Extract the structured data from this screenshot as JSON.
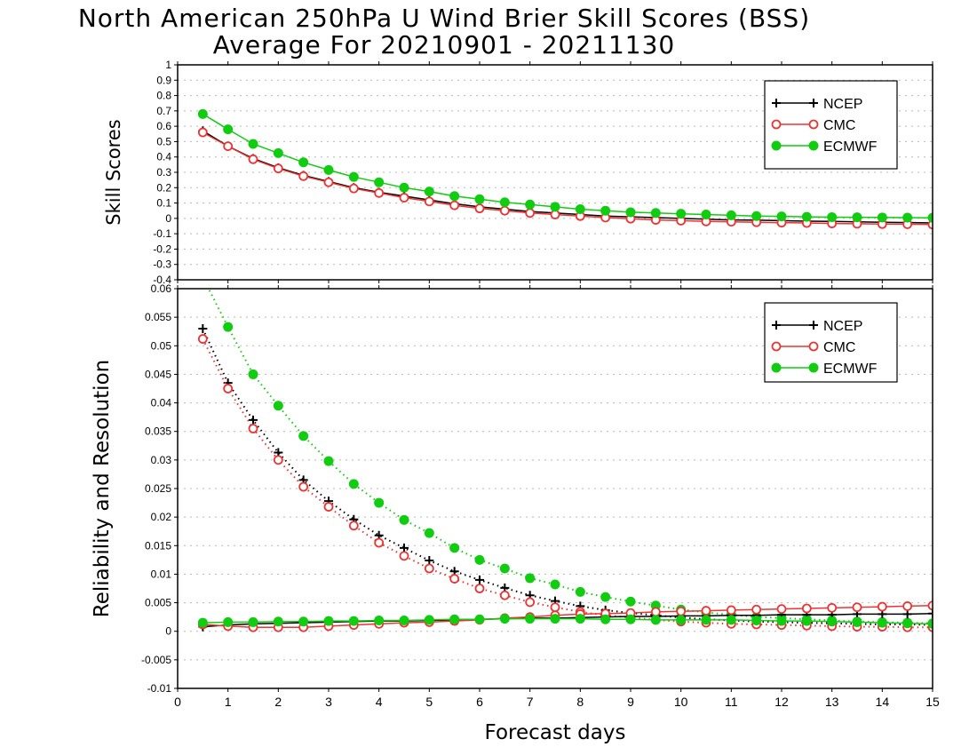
{
  "title": "North American 250hPa U Wind Brier Skill Scores (BSS)",
  "subtitle": "Average For 20210901 - 20211130",
  "xlabel": "Forecast days",
  "colors": {
    "NCEP": "#000000",
    "CMC": "#ee3333",
    "ECMWF": "#11cc11"
  },
  "chart_data": [
    {
      "type": "line",
      "ylabel": "Skill Scores",
      "xlim": [
        0,
        15
      ],
      "ylim": [
        -0.4,
        1
      ],
      "xticks": [
        "0",
        "1",
        "2",
        "3",
        "4",
        "5",
        "6",
        "7",
        "8",
        "9",
        "10",
        "11",
        "12",
        "13",
        "14",
        "15"
      ],
      "yticks": [
        "1",
        "0.9",
        "0.8",
        "0.7",
        "0.6",
        "0.5",
        "0.4",
        "0.3",
        "0.2",
        "0.1",
        "0",
        "-0.1",
        "-0.2",
        "-0.3",
        "-0.4"
      ],
      "grid": true,
      "legend_position": "top-right",
      "x": [
        0.5,
        1,
        1.5,
        2,
        2.5,
        3,
        3.5,
        4,
        4.5,
        5,
        5.5,
        6,
        6.5,
        7,
        7.5,
        8,
        8.5,
        9,
        9.5,
        10,
        10.5,
        11,
        11.5,
        12,
        12.5,
        13,
        13.5,
        14,
        14.5,
        15
      ],
      "series": [
        {
          "name": "NCEP",
          "marker": "plus",
          "style": "solid",
          "values": [
            0.57,
            0.47,
            0.39,
            0.33,
            0.28,
            0.24,
            0.2,
            0.17,
            0.145,
            0.12,
            0.095,
            0.075,
            0.06,
            0.045,
            0.035,
            0.025,
            0.015,
            0.01,
            0.005,
            0.0,
            -0.005,
            -0.01,
            -0.012,
            -0.015,
            -0.018,
            -0.02,
            -0.022,
            -0.025,
            -0.027,
            -0.03
          ]
        },
        {
          "name": "CMC",
          "marker": "open-circle",
          "style": "solid",
          "values": [
            0.56,
            0.47,
            0.385,
            0.325,
            0.275,
            0.235,
            0.195,
            0.165,
            0.135,
            0.11,
            0.085,
            0.065,
            0.05,
            0.035,
            0.025,
            0.015,
            0.005,
            -0.002,
            -0.01,
            -0.015,
            -0.02,
            -0.022,
            -0.025,
            -0.028,
            -0.03,
            -0.033,
            -0.035,
            -0.037,
            -0.038,
            -0.04
          ]
        },
        {
          "name": "ECMWF",
          "marker": "filled-circle",
          "style": "solid",
          "values": [
            0.68,
            0.58,
            0.485,
            0.425,
            0.365,
            0.315,
            0.27,
            0.235,
            0.2,
            0.175,
            0.145,
            0.125,
            0.105,
            0.09,
            0.075,
            0.06,
            0.05,
            0.04,
            0.035,
            0.03,
            0.025,
            0.02,
            0.015,
            0.013,
            0.01,
            0.008,
            0.007,
            0.006,
            0.005,
            0.004
          ]
        }
      ]
    },
    {
      "type": "line",
      "ylabel": "Reliability and Resolution",
      "xlim": [
        0,
        15
      ],
      "ylim": [
        -0.01,
        0.06
      ],
      "xticks": [
        "0",
        "1",
        "2",
        "3",
        "4",
        "5",
        "6",
        "7",
        "8",
        "9",
        "10",
        "11",
        "12",
        "13",
        "14",
        "15"
      ],
      "yticks": [
        "0.06",
        "0.055",
        "0.05",
        "0.045",
        "0.04",
        "0.035",
        "0.03",
        "0.025",
        "0.02",
        "0.015",
        "0.01",
        "0.005",
        "0",
        "-0.005",
        "-0.01"
      ],
      "grid": true,
      "legend_position": "top-right",
      "x": [
        0.5,
        1,
        1.5,
        2,
        2.5,
        3,
        3.5,
        4,
        4.5,
        5,
        5.5,
        6,
        6.5,
        7,
        7.5,
        8,
        8.5,
        9,
        9.5,
        10,
        10.5,
        11,
        11.5,
        12,
        12.5,
        13,
        13.5,
        14,
        14.5,
        15
      ],
      "series": [
        {
          "name": "NCEP",
          "marker": "plus",
          "style": "dotted",
          "values": [
            0.053,
            0.0435,
            0.037,
            0.0313,
            0.0265,
            0.0228,
            0.0196,
            0.0168,
            0.0146,
            0.0124,
            0.0105,
            0.009,
            0.0076,
            0.0063,
            0.0053,
            0.0044,
            0.0037,
            0.0032,
            0.0028,
            0.0024,
            0.0021,
            0.0019,
            0.0017,
            0.0016,
            0.0015,
            0.0014,
            0.0013,
            0.0012,
            0.0012,
            0.0011
          ]
        },
        {
          "name": "CMC",
          "marker": "open-circle",
          "style": "dotted",
          "values": [
            0.0512,
            0.0425,
            0.0355,
            0.03,
            0.0253,
            0.0218,
            0.0185,
            0.0155,
            0.0132,
            0.011,
            0.0092,
            0.0075,
            0.0063,
            0.0051,
            0.0042,
            0.0034,
            0.0028,
            0.0024,
            0.002,
            0.0017,
            0.0015,
            0.0013,
            0.0012,
            0.0011,
            0.001,
            0.0009,
            0.0008,
            0.0008,
            0.0007,
            0.0007
          ]
        },
        {
          "name": "ECMWF",
          "marker": "filled-circle",
          "style": "dotted",
          "values": [
            0.062,
            0.0533,
            0.045,
            0.0395,
            0.0342,
            0.0298,
            0.0258,
            0.0225,
            0.0195,
            0.0172,
            0.0146,
            0.0125,
            0.011,
            0.0093,
            0.0082,
            0.0069,
            0.006,
            0.0052,
            0.0045,
            0.0038,
            0.0033,
            0.0029,
            0.0025,
            0.0023,
            0.0021,
            0.0019,
            0.0017,
            0.0016,
            0.0015,
            0.0014
          ]
        },
        {
          "name": "NCEP",
          "marker": "plus",
          "style": "solid",
          "legend": false,
          "values": [
            0.0008,
            0.0011,
            0.0013,
            0.0014,
            0.0015,
            0.0016,
            0.0017,
            0.0018,
            0.0018,
            0.0019,
            0.002,
            0.0021,
            0.0022,
            0.0023,
            0.0023,
            0.0024,
            0.0025,
            0.0026,
            0.0026,
            0.0027,
            0.0027,
            0.0028,
            0.0028,
            0.0029,
            0.0029,
            0.0029,
            0.003,
            0.003,
            0.003,
            0.0031
          ]
        },
        {
          "name": "CMC",
          "marker": "open-circle",
          "style": "solid",
          "legend": false,
          "values": [
            0.0012,
            0.0009,
            0.0007,
            0.0007,
            0.0007,
            0.0009,
            0.0011,
            0.0013,
            0.0015,
            0.0016,
            0.0018,
            0.002,
            0.0023,
            0.0025,
            0.0028,
            0.003,
            0.0031,
            0.0032,
            0.0034,
            0.0035,
            0.0036,
            0.0037,
            0.0038,
            0.0039,
            0.004,
            0.0041,
            0.0042,
            0.0043,
            0.0044,
            0.0045
          ]
        },
        {
          "name": "ECMWF",
          "marker": "filled-circle",
          "style": "solid",
          "legend": false,
          "values": [
            0.0015,
            0.0016,
            0.0016,
            0.0017,
            0.0017,
            0.0018,
            0.0018,
            0.0019,
            0.0019,
            0.002,
            0.0021,
            0.0021,
            0.0022,
            0.0022,
            0.0022,
            0.0022,
            0.0021,
            0.0021,
            0.002,
            0.002,
            0.002,
            0.002,
            0.0019,
            0.0018,
            0.0018,
            0.0017,
            0.0016,
            0.0015,
            0.0014,
            0.0013
          ]
        }
      ]
    }
  ]
}
